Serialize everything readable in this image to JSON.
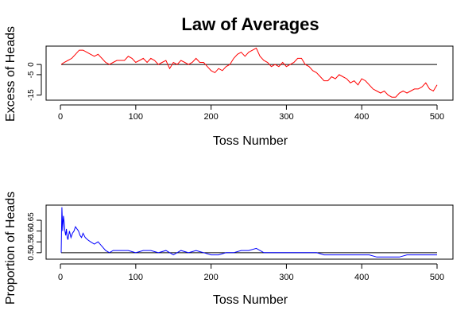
{
  "title": "Law of Averages",
  "chart_data": [
    {
      "type": "line",
      "xlabel": "Toss Number",
      "ylabel": "Excess of Heads",
      "xlim": [
        1,
        500
      ],
      "ylim": [
        -17.5,
        9
      ],
      "x_ticks": [
        0,
        100,
        200,
        300,
        400,
        500
      ],
      "y_ticks": [
        0,
        -5,
        -15
      ],
      "reference_line": 0,
      "color": "#ff0000",
      "series": [
        {
          "x": [
            1,
            5,
            10,
            15,
            20,
            25,
            30,
            35,
            40,
            45,
            50,
            55,
            60,
            65,
            70,
            75,
            80,
            85,
            90,
            95,
            100,
            105,
            110,
            115,
            120,
            125,
            130,
            135,
            140,
            145,
            150,
            155,
            160,
            165,
            170,
            175,
            180,
            185,
            190,
            195,
            200,
            205,
            210,
            215,
            220,
            225,
            230,
            235,
            240,
            245,
            250,
            255,
            260,
            265,
            270,
            275,
            280,
            285,
            290,
            295,
            300,
            305,
            310,
            315,
            320,
            325,
            330,
            335,
            340,
            345,
            350,
            355,
            360,
            365,
            370,
            375,
            380,
            385,
            390,
            395,
            400,
            405,
            410,
            415,
            420,
            425,
            430,
            435,
            440,
            445,
            450,
            455,
            460,
            465,
            470,
            475,
            480,
            485,
            490,
            495,
            500
          ],
          "values": [
            0,
            1,
            2,
            3,
            5,
            7,
            7,
            6,
            5,
            4,
            5,
            3,
            1,
            0,
            1,
            2,
            2,
            2,
            4,
            3,
            1,
            2,
            3,
            1,
            3,
            2,
            0,
            1,
            2,
            -2,
            1,
            0,
            2,
            1,
            0,
            1,
            3,
            1,
            1,
            -1,
            -3,
            -4,
            -2,
            -3,
            -1,
            0,
            3,
            5,
            6,
            4,
            6,
            7,
            8,
            4,
            2,
            1,
            -1,
            0,
            -1,
            1,
            -1,
            0,
            1,
            3,
            3,
            0,
            -1,
            -3,
            -4,
            -6,
            -8,
            -8,
            -6,
            -7,
            -5,
            -6,
            -7,
            -9,
            -8,
            -10,
            -7,
            -8,
            -10,
            -12,
            -13,
            -14,
            -13,
            -15,
            -16,
            -16,
            -14,
            -13,
            -14,
            -13,
            -12,
            -12,
            -11,
            -9,
            -12,
            -13,
            -10
          ]
        }
      ]
    },
    {
      "type": "line",
      "xlabel": "Toss Number",
      "ylabel": "Proportion of Heads",
      "xlim": [
        1,
        500
      ],
      "ylim": [
        0.47,
        0.72
      ],
      "x_ticks": [
        0,
        100,
        200,
        300,
        400,
        500
      ],
      "y_ticks": [
        0.5,
        0.55,
        0.6,
        0.65
      ],
      "y_tick_labels": [
        "0.50",
        "0.55",
        "0.60",
        "0.65"
      ],
      "reference_line": 0.5,
      "color": "#0000ff",
      "series": [
        {
          "x": [
            1,
            2,
            3,
            4,
            5,
            6,
            7,
            8,
            9,
            10,
            12,
            14,
            16,
            18,
            20,
            22,
            24,
            26,
            28,
            30,
            33,
            36,
            40,
            45,
            50,
            55,
            60,
            65,
            70,
            75,
            80,
            90,
            100,
            110,
            120,
            130,
            140,
            150,
            160,
            170,
            180,
            190,
            200,
            210,
            220,
            230,
            240,
            250,
            260,
            270,
            280,
            290,
            300,
            310,
            320,
            330,
            340,
            350,
            360,
            370,
            380,
            390,
            400,
            410,
            420,
            430,
            440,
            450,
            460,
            470,
            480,
            490,
            500
          ],
          "values": [
            0.5,
            0.71,
            0.6,
            0.67,
            0.64,
            0.6,
            0.58,
            0.61,
            0.57,
            0.56,
            0.6,
            0.57,
            0.59,
            0.6,
            0.62,
            0.61,
            0.6,
            0.58,
            0.57,
            0.59,
            0.57,
            0.56,
            0.55,
            0.54,
            0.55,
            0.53,
            0.51,
            0.5,
            0.51,
            0.51,
            0.51,
            0.51,
            0.5,
            0.51,
            0.51,
            0.5,
            0.51,
            0.49,
            0.51,
            0.5,
            0.51,
            0.5,
            0.49,
            0.49,
            0.5,
            0.5,
            0.51,
            0.51,
            0.52,
            0.5,
            0.5,
            0.5,
            0.5,
            0.5,
            0.5,
            0.5,
            0.5,
            0.49,
            0.49,
            0.49,
            0.49,
            0.49,
            0.49,
            0.49,
            0.48,
            0.48,
            0.48,
            0.48,
            0.49,
            0.49,
            0.49,
            0.49,
            0.49
          ]
        }
      ]
    }
  ]
}
